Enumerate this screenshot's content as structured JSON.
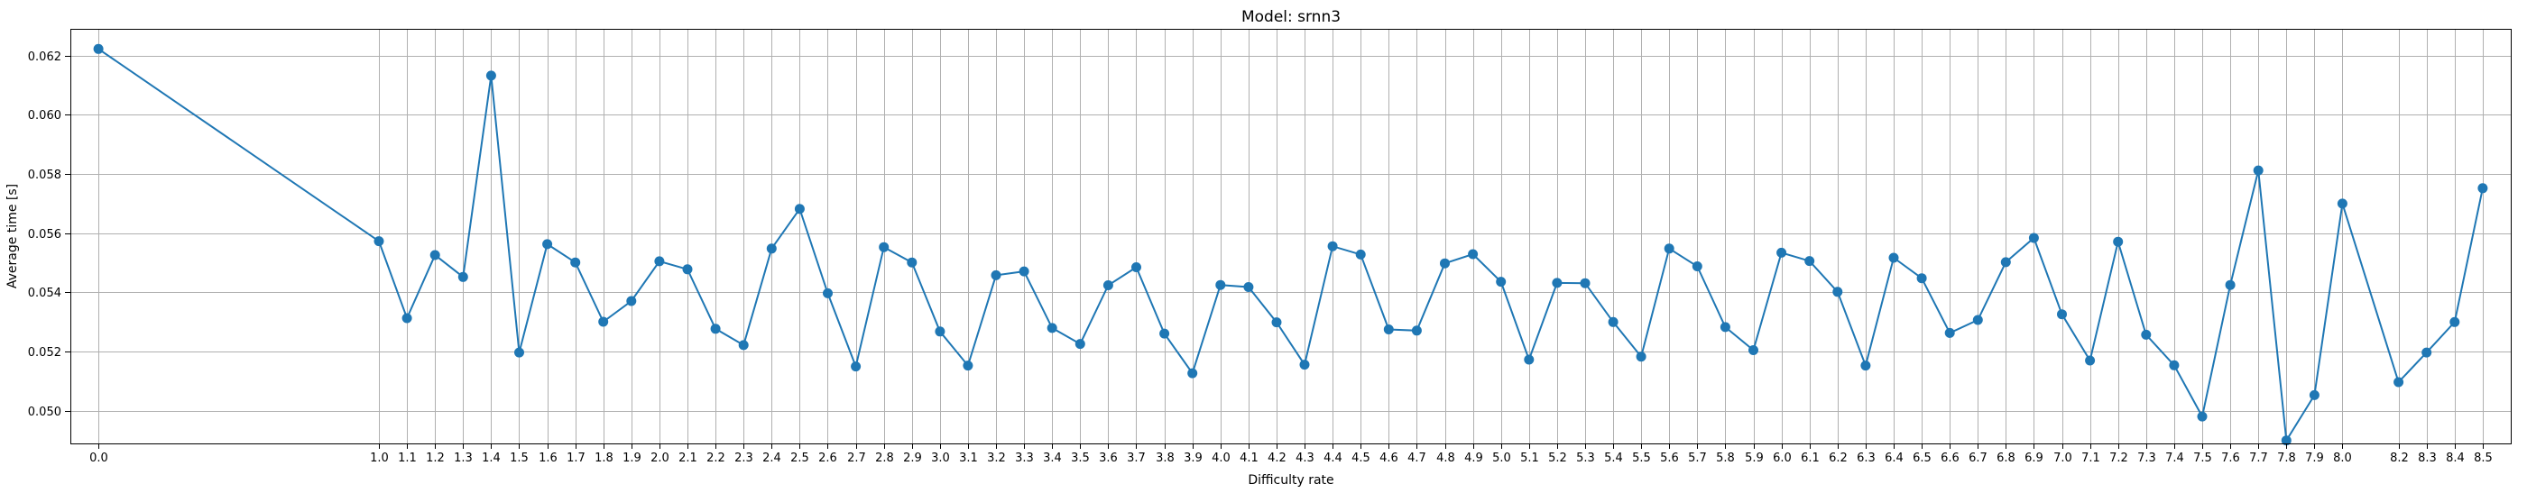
{
  "chart_data": {
    "type": "line",
    "title": "Model: srnn3",
    "xlabel": "Difficulty rate",
    "ylabel": "Average time [s]",
    "xlim": [
      -0.1,
      8.6
    ],
    "ylim": [
      0.0489,
      0.0629
    ],
    "grid": true,
    "color": "#1f77b4",
    "x": [
      0.0,
      1.0,
      1.1,
      1.2,
      1.3,
      1.4,
      1.5,
      1.6,
      1.7,
      1.8,
      1.9,
      2.0,
      2.1,
      2.2,
      2.3,
      2.4,
      2.5,
      2.6,
      2.7,
      2.8,
      2.9,
      3.0,
      3.1,
      3.2,
      3.3,
      3.4,
      3.5,
      3.6,
      3.7,
      3.8,
      3.9,
      4.0,
      4.1,
      4.2,
      4.3,
      4.4,
      4.5,
      4.6,
      4.7,
      4.8,
      4.9,
      5.0,
      5.1,
      5.2,
      5.3,
      5.4,
      5.5,
      5.6,
      5.7,
      5.8,
      5.9,
      6.0,
      6.1,
      6.2,
      6.3,
      6.4,
      6.5,
      6.6,
      6.7,
      6.8,
      6.9,
      7.0,
      7.1,
      7.2,
      7.3,
      7.4,
      7.5,
      7.6,
      7.7,
      7.8,
      7.9,
      8.0,
      8.2,
      8.3,
      8.4,
      8.5
    ],
    "x_tick_labels": [
      "0.0",
      "1.0",
      "1.1",
      "1.2",
      "1.3",
      "1.4",
      "1.5",
      "1.6",
      "1.7",
      "1.8",
      "1.9",
      "2.0",
      "2.1",
      "2.2",
      "2.3",
      "2.4",
      "2.5",
      "2.6",
      "2.7",
      "2.8",
      "2.9",
      "3.0",
      "3.1",
      "3.2",
      "3.3",
      "3.4",
      "3.5",
      "3.6",
      "3.7",
      "3.8",
      "3.9",
      "4.0",
      "4.1",
      "4.2",
      "4.3",
      "4.4",
      "4.5",
      "4.6",
      "4.7",
      "4.8",
      "4.9",
      "5.0",
      "5.1",
      "5.2",
      "5.3",
      "5.4",
      "5.5",
      "5.6",
      "5.7",
      "5.8",
      "5.9",
      "6.0",
      "6.1",
      "6.2",
      "6.3",
      "6.4",
      "6.5",
      "6.6",
      "6.7",
      "6.8",
      "6.9",
      "7.0",
      "7.1",
      "7.2",
      "7.3",
      "7.4",
      "7.5",
      "7.6",
      "7.7",
      "7.8",
      "7.9",
      "8.0",
      "8.2",
      "8.3",
      "8.4",
      "8.5"
    ],
    "y": [
      0.06222,
      0.05573,
      0.05313,
      0.05526,
      0.05452,
      0.06132,
      0.05197,
      0.05563,
      0.05501,
      0.05301,
      0.05371,
      0.05505,
      0.05478,
      0.05277,
      0.05222,
      0.05548,
      0.05682,
      0.05397,
      0.0515,
      0.05553,
      0.05501,
      0.05268,
      0.05153,
      0.05458,
      0.05471,
      0.0528,
      0.05226,
      0.05424,
      0.05485,
      0.05261,
      0.05127,
      0.05425,
      0.05418,
      0.05299,
      0.05156,
      0.05556,
      0.05528,
      0.05275,
      0.05271,
      0.05498,
      0.05529,
      0.05436,
      0.05173,
      0.05432,
      0.05431,
      0.053,
      0.05183,
      0.05548,
      0.05488,
      0.05283,
      0.05205,
      0.05534,
      0.05506,
      0.05402,
      0.05153,
      0.05517,
      0.05448,
      0.05263,
      0.05307,
      0.05502,
      0.05584,
      0.05326,
      0.0517,
      0.05571,
      0.05257,
      0.05154,
      0.04981,
      0.05425,
      0.05812,
      0.049,
      0.05053,
      0.057,
      0.05097,
      0.05197,
      0.053,
      0.05752
    ],
    "y_ticks": [
      0.05,
      0.052,
      0.054,
      0.056,
      0.058,
      0.06,
      0.062
    ],
    "y_tick_labels": [
      "0.050",
      "0.052",
      "0.054",
      "0.056",
      "0.058",
      "0.060",
      "0.062"
    ]
  }
}
